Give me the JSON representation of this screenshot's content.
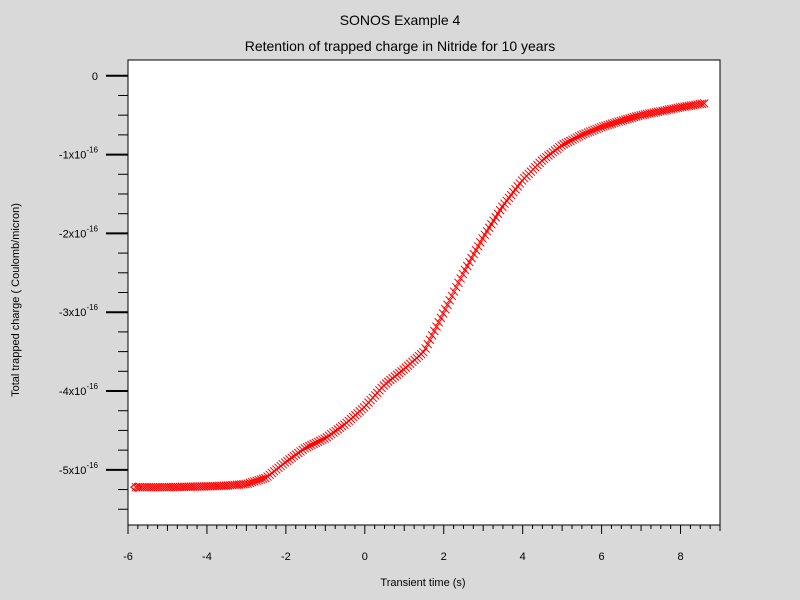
{
  "chart_data": {
    "type": "scatter",
    "title": "SONOS Example 4",
    "subtitle": "Retention of trapped charge in Nitride for 10 years",
    "xlabel": "Transient time (s)",
    "ylabel": "Total trapped charge ( Coulomb/micron)",
    "xlim": [
      -6,
      9
    ],
    "ylim": [
      -5.7,
      0.2
    ],
    "x_ticks": [
      -6,
      -4,
      -2,
      0,
      2,
      4,
      6,
      8
    ],
    "y_ticks": [
      {
        "value": 0,
        "mantissa": "0",
        "exponent": ""
      },
      {
        "value": -1,
        "mantissa": "-1x10",
        "exponent": "-16"
      },
      {
        "value": -2,
        "mantissa": "-2x10",
        "exponent": "-16"
      },
      {
        "value": -3,
        "mantissa": "-3x10",
        "exponent": "-16"
      },
      {
        "value": -4,
        "mantissa": "-4x10",
        "exponent": "-16"
      },
      {
        "value": -5,
        "mantissa": "-5x10",
        "exponent": "-16"
      }
    ],
    "y_unit_scale": "1e-16",
    "grid": false,
    "marker": "x",
    "marker_color": "#ff0000",
    "series": [
      {
        "x": [
          -5.8,
          -5.0,
          -4.0,
          -3.5,
          -3.0,
          -2.5,
          -2.0,
          -1.5,
          -1.0,
          -0.5,
          0.0,
          0.5,
          1.0,
          1.5,
          2.0,
          2.5,
          3.0,
          3.5,
          4.0,
          4.5,
          5.0,
          5.5,
          6.0,
          6.5,
          7.0,
          7.5,
          8.0,
          8.6
        ],
        "y": [
          -5.22,
          -5.22,
          -5.21,
          -5.2,
          -5.18,
          -5.1,
          -4.9,
          -4.72,
          -4.6,
          -4.42,
          -4.2,
          -3.92,
          -3.72,
          -3.5,
          -3.0,
          -2.5,
          -2.05,
          -1.65,
          -1.32,
          -1.07,
          -0.88,
          -0.75,
          -0.65,
          -0.57,
          -0.5,
          -0.45,
          -0.4,
          -0.35
        ]
      }
    ]
  }
}
